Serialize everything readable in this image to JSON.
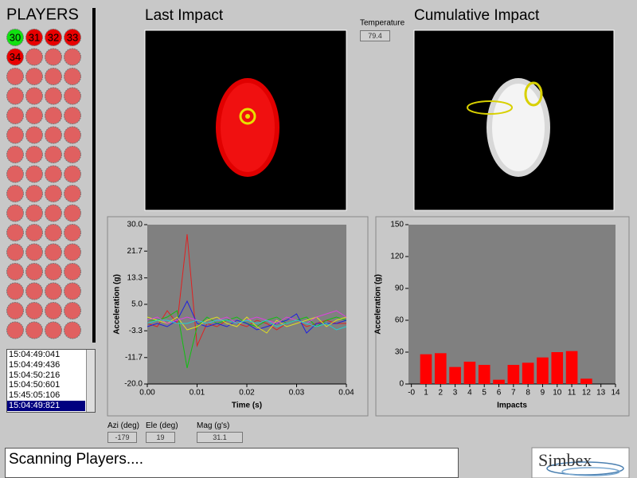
{
  "players": {
    "title": "PLAYERS",
    "buttons": [
      {
        "label": "30",
        "color": "#10e010"
      },
      {
        "label": "31",
        "color": "#e80000"
      },
      {
        "label": "32",
        "color": "#e80000"
      },
      {
        "label": "33",
        "color": "#e80000"
      },
      {
        "label": "34",
        "color": "#e80000"
      }
    ]
  },
  "times": {
    "items": [
      "15:04:49:041",
      "15:04:49:436",
      "15:04:50:216",
      "15:04:50:601",
      "15:45:05:106",
      "15:04:49:821"
    ],
    "selected": 5
  },
  "last_impact": {
    "title": "Last Impact"
  },
  "cumulative_impact": {
    "title": "Cumulative Impact"
  },
  "temperature": {
    "label": "Temperature",
    "value": 79.4
  },
  "readouts": {
    "azi": {
      "label": "Azi (deg)",
      "value": -179
    },
    "ele": {
      "label": "Ele (deg)",
      "value": 19
    },
    "mag": {
      "label": "Mag (g's)",
      "value": 31.1
    }
  },
  "status": "Scanning Players....",
  "logo": "Simbex",
  "chart_data": [
    {
      "type": "line",
      "x_label": "Time (s)",
      "y_label": "Acceleration (g)",
      "x": [
        0,
        0.002,
        0.004,
        0.006,
        0.008,
        0.01,
        0.012,
        0.014,
        0.016,
        0.018,
        0.02,
        0.022,
        0.024,
        0.026,
        0.028,
        0.03,
        0.032,
        0.034,
        0.036,
        0.038,
        0.04
      ],
      "series": [
        {
          "color": "#e02020",
          "values": [
            -1,
            -2,
            3,
            -1,
            27,
            -8,
            -1,
            -2,
            0,
            -1,
            -2,
            0,
            -1,
            -3,
            -1,
            0,
            -2,
            -1,
            0,
            -1,
            -1
          ]
        },
        {
          "color": "#10c010",
          "values": [
            0,
            0,
            1,
            3,
            -15,
            -2,
            1,
            -1,
            0,
            1,
            -1,
            -2,
            0,
            1,
            -1,
            0,
            1,
            -2,
            0,
            1,
            0
          ]
        },
        {
          "color": "#2020e0",
          "values": [
            -2,
            -1,
            -2,
            0,
            6,
            -1,
            -2,
            -1,
            -2,
            0,
            -1,
            -3,
            -2,
            -1,
            0,
            2,
            -4,
            -1,
            -1,
            -1,
            0
          ]
        },
        {
          "color": "#e0e020",
          "values": [
            1,
            0,
            -1,
            1,
            -3,
            -2,
            0,
            1,
            -1,
            -2,
            1,
            -2,
            -4,
            0,
            -2,
            -1,
            0,
            1,
            -2,
            0,
            1
          ]
        },
        {
          "color": "#e040e0",
          "values": [
            0,
            1,
            -1,
            0,
            1,
            0,
            -1,
            0,
            1,
            -1,
            0,
            1,
            0,
            -1,
            1,
            0,
            -1,
            1,
            2,
            3,
            1
          ]
        },
        {
          "color": "#20d0d0",
          "values": [
            -1,
            0,
            0,
            -1,
            -1,
            0,
            -1,
            0,
            0,
            -1,
            0,
            -1,
            0,
            -2,
            -1,
            0,
            -1,
            -2,
            -1,
            -3,
            -2
          ]
        }
      ],
      "xlim": [
        0,
        0.04
      ],
      "ylim": [
        -20,
        30
      ],
      "xticks": [
        {
          "value": 0,
          "label": "0.00"
        },
        0.01,
        0.02,
        0.03,
        0.04
      ],
      "yticks": [
        {
          "value": -20,
          "label": "-20.0"
        },
        -11.7,
        -3.3,
        {
          "value": 5,
          "label": "5.0"
        },
        13.3,
        21.7,
        {
          "value": 30,
          "label": "30.0"
        }
      ]
    },
    {
      "type": "bar",
      "x_label": "Impacts",
      "y_label": "Acceleration (g)",
      "color": "#ff0000",
      "x": [
        1,
        2,
        3,
        4,
        5,
        6,
        7,
        8,
        9,
        10,
        11,
        12
      ],
      "values": [
        28,
        29,
        16,
        21,
        18,
        4,
        18,
        20,
        25,
        30,
        31,
        5
      ],
      "xlim": [
        -0.2,
        14
      ],
      "ylim": [
        0,
        150
      ],
      "xticks": [
        {
          "value": 0,
          "label": "-0"
        },
        1,
        2,
        3,
        4,
        5,
        6,
        7,
        8,
        9,
        10,
        11,
        12,
        13,
        14
      ],
      "yticks": [
        0,
        30,
        60,
        90,
        120,
        150
      ]
    }
  ]
}
